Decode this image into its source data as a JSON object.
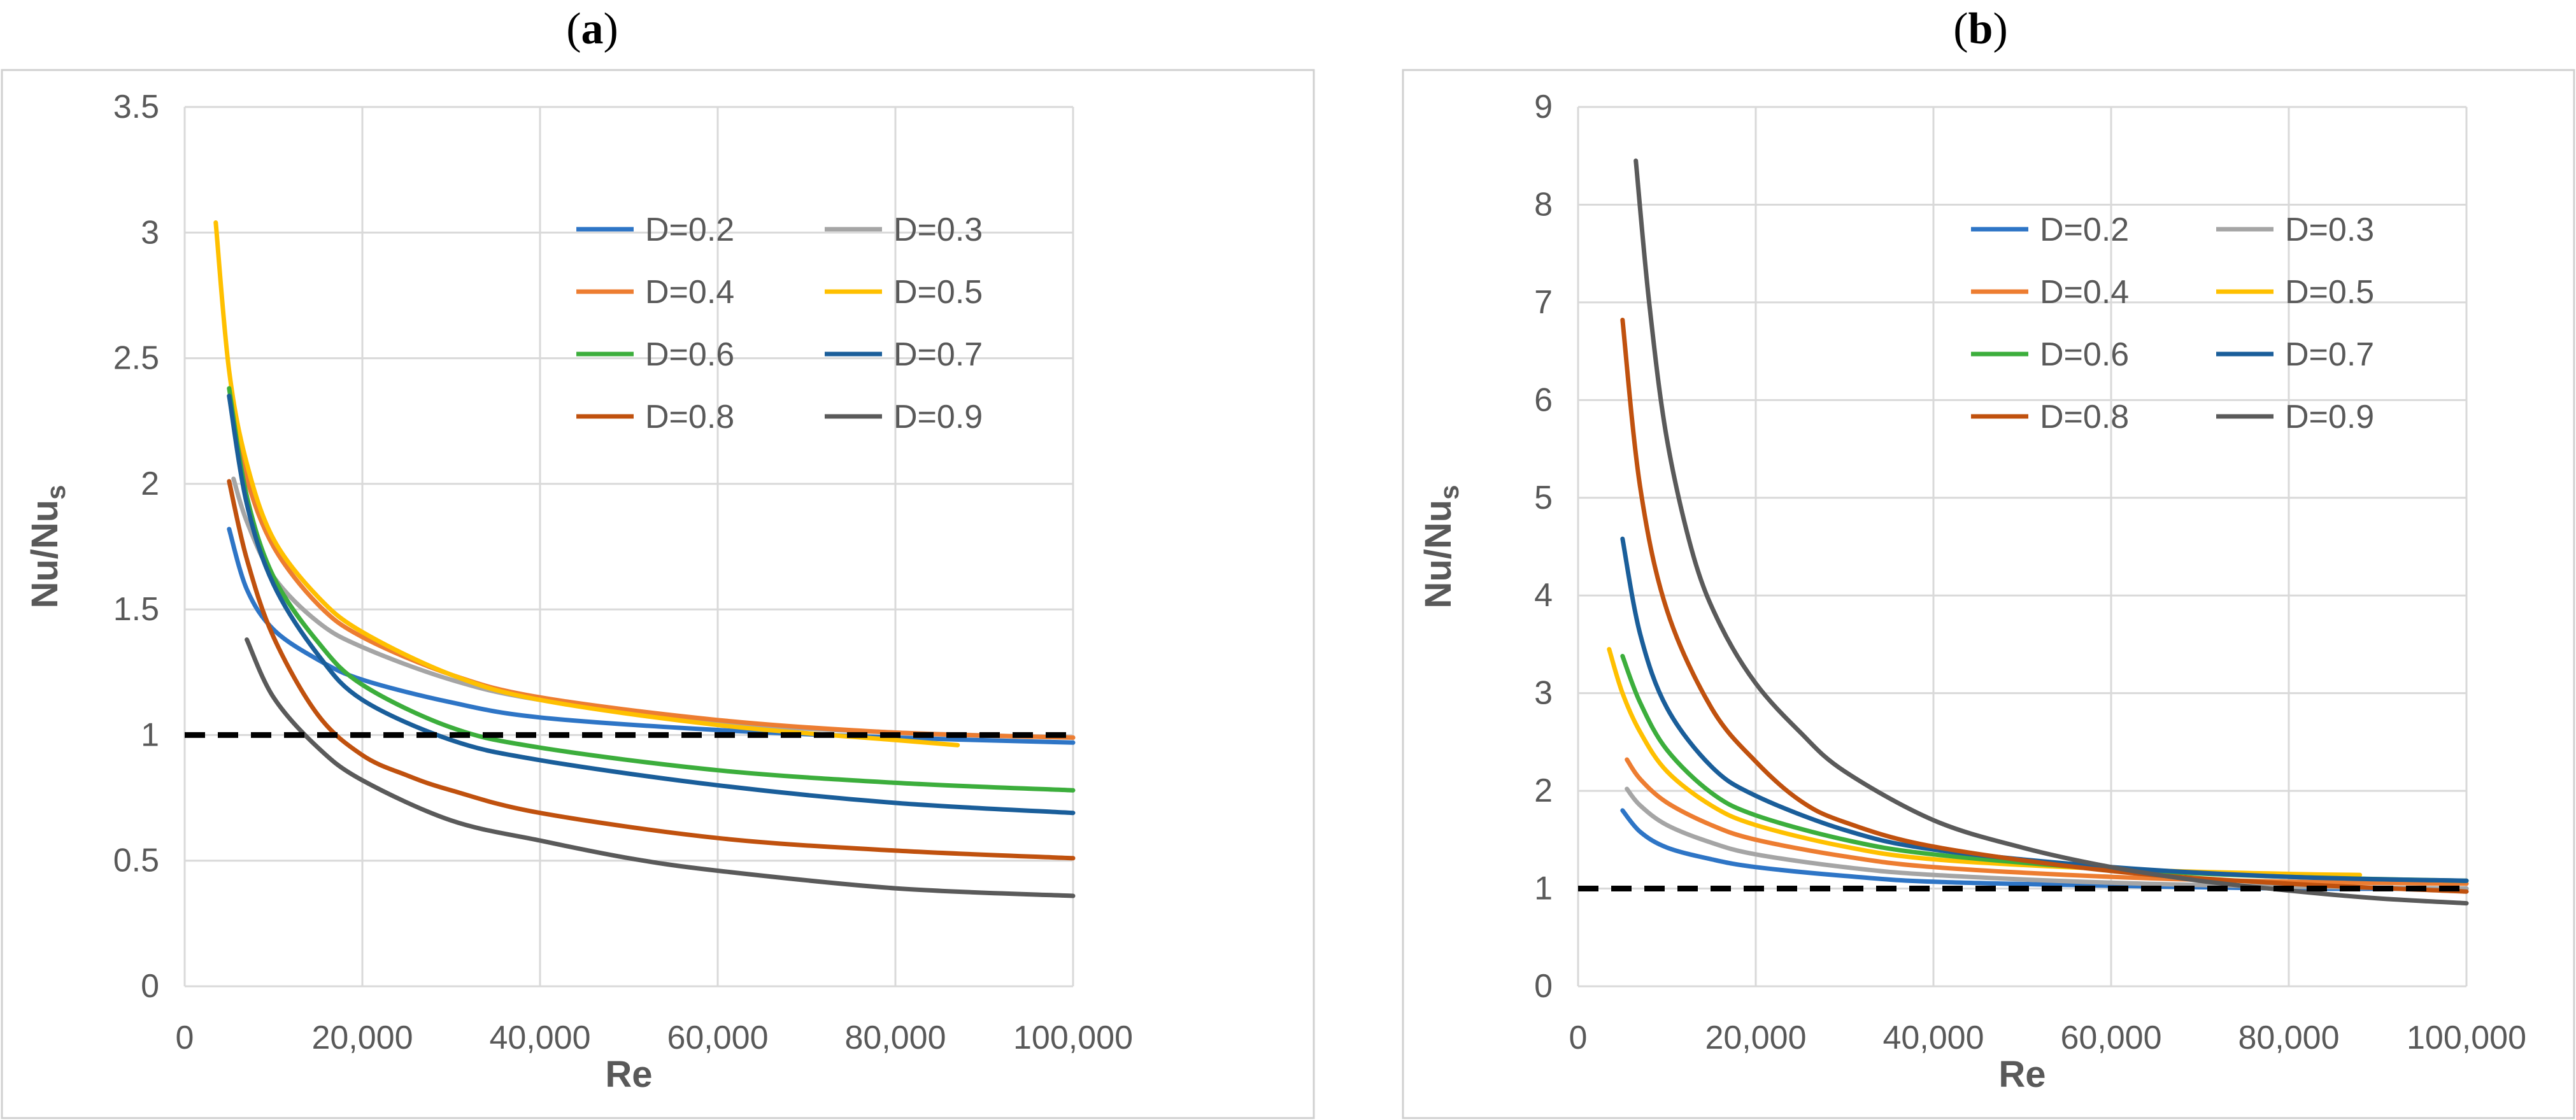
{
  "panels": [
    {
      "label_open": "(",
      "label_letter": "a",
      "label_close": ")",
      "chart": {
        "type": "line",
        "xlabel": "Re",
        "ylabel_main": "Nu/Nu",
        "ylabel_sub": "s",
        "xlim": [
          0,
          100000
        ],
        "ylim": [
          0,
          3.5
        ],
        "xticks": [
          0,
          20000,
          40000,
          60000,
          80000,
          100000
        ],
        "xtick_labels": [
          "0",
          "20,000",
          "40,000",
          "60,000",
          "80,000",
          "100,000"
        ],
        "yticks": [
          0,
          0.5,
          1,
          1.5,
          2,
          2.5,
          3,
          3.5
        ],
        "ytick_labels": [
          "0",
          "0.5",
          "1",
          "1.5",
          "2",
          "2.5",
          "3",
          "3.5"
        ],
        "grid": true,
        "legend_position": "top-right",
        "reference_line": {
          "y": 1,
          "style": "dashed",
          "color": "#000000"
        },
        "series": [
          {
            "name": "D=0.2",
            "color": "#2e75c6",
            "points": [
              [
                5000,
                1.82
              ],
              [
                7000,
                1.58
              ],
              [
                10000,
                1.42
              ],
              [
                15000,
                1.3
              ],
              [
                20000,
                1.22
              ],
              [
                30000,
                1.13
              ],
              [
                40000,
                1.07
              ],
              [
                60000,
                1.02
              ],
              [
                80000,
                0.99
              ],
              [
                100000,
                0.97
              ]
            ]
          },
          {
            "name": "D=0.3",
            "color": "#a5a5a5",
            "points": [
              [
                5500,
                2.02
              ],
              [
                7000,
                1.85
              ],
              [
                10000,
                1.63
              ],
              [
                15000,
                1.45
              ],
              [
                20000,
                1.35
              ],
              [
                30000,
                1.22
              ],
              [
                40000,
                1.14
              ],
              [
                60000,
                1.05
              ],
              [
                80000,
                1.01
              ],
              [
                100000,
                0.99
              ]
            ]
          },
          {
            "name": "D=0.4",
            "color": "#ed7d31",
            "points": [
              [
                5000,
                2.35
              ],
              [
                7000,
                2.02
              ],
              [
                10000,
                1.75
              ],
              [
                15000,
                1.52
              ],
              [
                20000,
                1.39
              ],
              [
                30000,
                1.24
              ],
              [
                40000,
                1.15
              ],
              [
                60000,
                1.06
              ],
              [
                80000,
                1.01
              ],
              [
                100000,
                0.99
              ]
            ]
          },
          {
            "name": "D=0.5",
            "color": "#ffc000",
            "points": [
              [
                3500,
                3.04
              ],
              [
                5000,
                2.45
              ],
              [
                7000,
                2.08
              ],
              [
                10000,
                1.78
              ],
              [
                15000,
                1.55
              ],
              [
                20000,
                1.41
              ],
              [
                30000,
                1.24
              ],
              [
                40000,
                1.14
              ],
              [
                60000,
                1.04
              ],
              [
                80000,
                0.98
              ],
              [
                87000,
                0.96
              ]
            ]
          },
          {
            "name": "D=0.6",
            "color": "#3cae3c",
            "points": [
              [
                5000,
                2.38
              ],
              [
                7000,
                1.95
              ],
              [
                10000,
                1.63
              ],
              [
                15000,
                1.37
              ],
              [
                20000,
                1.2
              ],
              [
                30000,
                1.03
              ],
              [
                40000,
                0.95
              ],
              [
                60000,
                0.86
              ],
              [
                80000,
                0.81
              ],
              [
                100000,
                0.78
              ]
            ]
          },
          {
            "name": "D=0.7",
            "color": "#1a5e9a",
            "points": [
              [
                5000,
                2.35
              ],
              [
                7000,
                1.92
              ],
              [
                10000,
                1.6
              ],
              [
                15000,
                1.32
              ],
              [
                20000,
                1.14
              ],
              [
                30000,
                0.98
              ],
              [
                40000,
                0.9
              ],
              [
                60000,
                0.8
              ],
              [
                80000,
                0.73
              ],
              [
                100000,
                0.69
              ]
            ]
          },
          {
            "name": "D=0.8",
            "color": "#c0510e",
            "points": [
              [
                5000,
                2.01
              ],
              [
                7000,
                1.7
              ],
              [
                10000,
                1.39
              ],
              [
                15000,
                1.08
              ],
              [
                20000,
                0.92
              ],
              [
                25000,
                0.84
              ],
              [
                30000,
                0.78
              ],
              [
                40000,
                0.69
              ],
              [
                60000,
                0.59
              ],
              [
                80000,
                0.54
              ],
              [
                100000,
                0.51
              ]
            ]
          },
          {
            "name": "D=0.9",
            "color": "#5a5a5a",
            "points": [
              [
                7000,
                1.38
              ],
              [
                10000,
                1.15
              ],
              [
                15000,
                0.95
              ],
              [
                20000,
                0.82
              ],
              [
                30000,
                0.66
              ],
              [
                40000,
                0.58
              ],
              [
                50000,
                0.51
              ],
              [
                60000,
                0.46
              ],
              [
                80000,
                0.39
              ],
              [
                100000,
                0.36
              ]
            ]
          }
        ]
      }
    },
    {
      "label_open": "(",
      "label_letter": "b",
      "label_close": ")",
      "chart": {
        "type": "line",
        "xlabel": "Re",
        "ylabel_main": "Nu/Nu",
        "ylabel_sub": "s",
        "xlim": [
          0,
          100000
        ],
        "ylim": [
          0,
          9
        ],
        "xticks": [
          0,
          20000,
          40000,
          60000,
          80000,
          100000
        ],
        "xtick_labels": [
          "0",
          "20,000",
          "40,000",
          "60,000",
          "80,000",
          "100,000"
        ],
        "yticks": [
          0,
          1,
          2,
          3,
          4,
          5,
          6,
          7,
          8,
          9
        ],
        "ytick_labels": [
          "0",
          "1",
          "2",
          "3",
          "4",
          "5",
          "6",
          "7",
          "8",
          "9"
        ],
        "grid": true,
        "legend_position": "top-right",
        "reference_line": {
          "y": 1,
          "style": "dashed",
          "color": "#000000"
        },
        "series": [
          {
            "name": "D=0.2",
            "color": "#2e75c6",
            "points": [
              [
                5000,
                1.8
              ],
              [
                7000,
                1.58
              ],
              [
                10000,
                1.42
              ],
              [
                15000,
                1.3
              ],
              [
                20000,
                1.22
              ],
              [
                30000,
                1.13
              ],
              [
                40000,
                1.07
              ],
              [
                60000,
                1.03
              ],
              [
                80000,
                1.0
              ],
              [
                100000,
                1.0
              ]
            ]
          },
          {
            "name": "D=0.3",
            "color": "#a5a5a5",
            "points": [
              [
                5500,
                2.02
              ],
              [
                7000,
                1.85
              ],
              [
                10000,
                1.65
              ],
              [
                15000,
                1.47
              ],
              [
                20000,
                1.35
              ],
              [
                30000,
                1.22
              ],
              [
                40000,
                1.14
              ],
              [
                60000,
                1.06
              ],
              [
                80000,
                1.02
              ],
              [
                100000,
                1.0
              ]
            ]
          },
          {
            "name": "D=0.4",
            "color": "#ed7d31",
            "points": [
              [
                5500,
                2.32
              ],
              [
                7000,
                2.12
              ],
              [
                10000,
                1.88
              ],
              [
                15000,
                1.65
              ],
              [
                20000,
                1.5
              ],
              [
                30000,
                1.33
              ],
              [
                40000,
                1.22
              ],
              [
                60000,
                1.12
              ],
              [
                80000,
                1.07
              ],
              [
                100000,
                1.05
              ]
            ]
          },
          {
            "name": "D=0.5",
            "color": "#ffc000",
            "points": [
              [
                3500,
                3.45
              ],
              [
                5000,
                3.0
              ],
              [
                7000,
                2.6
              ],
              [
                10000,
                2.2
              ],
              [
                15000,
                1.85
              ],
              [
                20000,
                1.65
              ],
              [
                30000,
                1.43
              ],
              [
                40000,
                1.3
              ],
              [
                60000,
                1.2
              ],
              [
                80000,
                1.15
              ],
              [
                88000,
                1.14
              ]
            ]
          },
          {
            "name": "D=0.6",
            "color": "#3cae3c",
            "points": [
              [
                5000,
                3.38
              ],
              [
                7000,
                2.9
              ],
              [
                10000,
                2.42
              ],
              [
                15000,
                1.98
              ],
              [
                20000,
                1.75
              ],
              [
                30000,
                1.5
              ],
              [
                40000,
                1.35
              ],
              [
                60000,
                1.2
              ],
              [
                80000,
                1.12
              ],
              [
                100000,
                1.08
              ]
            ]
          },
          {
            "name": "D=0.7",
            "color": "#1a5e9a",
            "points": [
              [
                5000,
                4.58
              ],
              [
                7000,
                3.6
              ],
              [
                10000,
                2.85
              ],
              [
                15000,
                2.25
              ],
              [
                20000,
                1.95
              ],
              [
                30000,
                1.6
              ],
              [
                40000,
                1.4
              ],
              [
                60000,
                1.22
              ],
              [
                80000,
                1.12
              ],
              [
                100000,
                1.08
              ]
            ]
          },
          {
            "name": "D=0.8",
            "color": "#c0510e",
            "points": [
              [
                5000,
                6.82
              ],
              [
                7000,
                5.1
              ],
              [
                10000,
                3.85
              ],
              [
                15000,
                2.85
              ],
              [
                20000,
                2.3
              ],
              [
                25000,
                1.9
              ],
              [
                30000,
                1.68
              ],
              [
                40000,
                1.43
              ],
              [
                60000,
                1.18
              ],
              [
                80000,
                1.05
              ],
              [
                100000,
                0.97
              ]
            ]
          },
          {
            "name": "D=0.9",
            "color": "#5a5a5a",
            "points": [
              [
                6500,
                8.45
              ],
              [
                8000,
                7.0
              ],
              [
                10000,
                5.6
              ],
              [
                13000,
                4.4
              ],
              [
                16000,
                3.7
              ],
              [
                20000,
                3.1
              ],
              [
                25000,
                2.6
              ],
              [
                30000,
                2.2
              ],
              [
                40000,
                1.7
              ],
              [
                50000,
                1.42
              ],
              [
                60000,
                1.22
              ],
              [
                70000,
                1.08
              ],
              [
                80000,
                0.98
              ],
              [
                90000,
                0.9
              ],
              [
                100000,
                0.85
              ]
            ]
          }
        ]
      }
    }
  ]
}
